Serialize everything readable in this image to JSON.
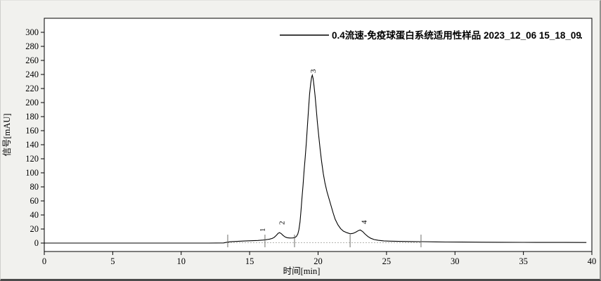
{
  "window": {
    "bg_color": "#f1f1ee",
    "plot_bg_color": "#ffffff",
    "frame_color": "#000000"
  },
  "legend": {
    "label": "0.4流速-免疫球蛋白系统适用性样品 2023_12_06 15_18_09",
    "line_color": "#000000",
    "trailing_dot": "."
  },
  "chart_data": {
    "type": "line",
    "title": "",
    "xlabel": "时间[min]",
    "ylabel": "信号[mAU]",
    "xlim": [
      0,
      40
    ],
    "ylim": [
      -12,
      320
    ],
    "x_ticks": [
      0,
      5,
      10,
      15,
      20,
      25,
      30,
      35,
      40
    ],
    "y_ticks": [
      0,
      20,
      40,
      60,
      80,
      100,
      120,
      140,
      160,
      180,
      200,
      220,
      240,
      260,
      280,
      300
    ],
    "grid": false,
    "legend_position": "top-right",
    "series": [
      {
        "name": "0.4流速-免疫球蛋白系统适用性样品 2023_12_06 15_18_09",
        "color": "#000000",
        "points": [
          [
            0,
            0
          ],
          [
            3,
            0
          ],
          [
            6,
            0
          ],
          [
            9,
            0
          ],
          [
            12,
            0
          ],
          [
            13.1,
            0.2
          ],
          [
            13.35,
            1.2
          ],
          [
            13.6,
            1.9
          ],
          [
            14.1,
            2.4
          ],
          [
            14.6,
            2.9
          ],
          [
            15.1,
            3.3
          ],
          [
            15.6,
            3.7
          ],
          [
            16.0,
            4.3
          ],
          [
            16.2,
            4.8
          ],
          [
            16.45,
            5.6
          ],
          [
            16.65,
            6.6
          ],
          [
            16.8,
            8.2
          ],
          [
            16.95,
            11
          ],
          [
            17.08,
            13.8
          ],
          [
            17.18,
            14.9
          ],
          [
            17.3,
            13.6
          ],
          [
            17.45,
            10.8
          ],
          [
            17.6,
            8.6
          ],
          [
            17.75,
            7.6
          ],
          [
            17.95,
            7.2
          ],
          [
            18.15,
            7.3
          ],
          [
            18.3,
            7.8
          ],
          [
            18.42,
            9.5
          ],
          [
            18.52,
            13
          ],
          [
            18.6,
            19
          ],
          [
            18.68,
            30
          ],
          [
            18.75,
            46
          ],
          [
            18.82,
            63
          ],
          [
            18.9,
            82
          ],
          [
            18.98,
            103
          ],
          [
            19.06,
            122
          ],
          [
            19.14,
            143
          ],
          [
            19.22,
            166
          ],
          [
            19.3,
            190
          ],
          [
            19.38,
            212
          ],
          [
            19.46,
            227
          ],
          [
            19.53,
            236
          ],
          [
            19.58,
            239
          ],
          [
            19.64,
            234
          ],
          [
            19.7,
            224
          ],
          [
            19.78,
            210
          ],
          [
            19.86,
            192
          ],
          [
            19.95,
            172
          ],
          [
            20.05,
            152
          ],
          [
            20.15,
            134
          ],
          [
            20.25,
            117
          ],
          [
            20.38,
            99
          ],
          [
            20.5,
            86
          ],
          [
            20.65,
            73
          ],
          [
            20.8,
            63
          ],
          [
            20.95,
            53
          ],
          [
            21.1,
            43
          ],
          [
            21.25,
            34
          ],
          [
            21.45,
            26
          ],
          [
            21.65,
            20.5
          ],
          [
            21.85,
            17
          ],
          [
            22.1,
            14.8
          ],
          [
            22.35,
            13.2
          ],
          [
            22.55,
            13.8
          ],
          [
            22.75,
            15.5
          ],
          [
            22.95,
            17.8
          ],
          [
            23.08,
            18.6
          ],
          [
            23.25,
            16.5
          ],
          [
            23.45,
            12.5
          ],
          [
            23.65,
            9.2
          ],
          [
            23.85,
            6.8
          ],
          [
            24.1,
            5
          ],
          [
            24.4,
            3.9
          ],
          [
            24.8,
            3.1
          ],
          [
            25.3,
            2.7
          ],
          [
            26.2,
            2.3
          ],
          [
            27.0,
            2.1
          ],
          [
            27.6,
            2.0
          ],
          [
            28.6,
            1.7
          ],
          [
            29.3,
            1.5
          ],
          [
            30.5,
            1.4
          ],
          [
            32,
            1.2
          ],
          [
            33.5,
            1.1
          ],
          [
            35,
            1.0
          ],
          [
            36.5,
            0.9
          ],
          [
            38,
            0.85
          ],
          [
            39.6,
            0.8
          ]
        ]
      }
    ],
    "peaks": [
      {
        "label": "1",
        "label_t": 15.92,
        "label_mAU": 16,
        "apex_t": 16.5,
        "apex_mAU": 6
      },
      {
        "label": "2",
        "label_t": 17.33,
        "label_mAU": 26,
        "apex_t": 17.18,
        "apex_mAU": 14.9
      },
      {
        "label": "3",
        "label_t": 19.62,
        "label_mAU": 242,
        "apex_t": 19.58,
        "apex_mAU": 239
      },
      {
        "label": "4",
        "label_t": 23.33,
        "label_mAU": 27,
        "apex_t": 23.08,
        "apex_mAU": 18.6
      }
    ],
    "integration_marks": {
      "times": [
        13.4,
        16.12,
        18.28,
        22.34,
        27.52
      ],
      "color": "#6e6e6a"
    },
    "baseline": {
      "from_t": 13.4,
      "to_t": 27.55,
      "mAU": 0.5,
      "color": "#b4b4b0",
      "style": "dashed"
    }
  }
}
